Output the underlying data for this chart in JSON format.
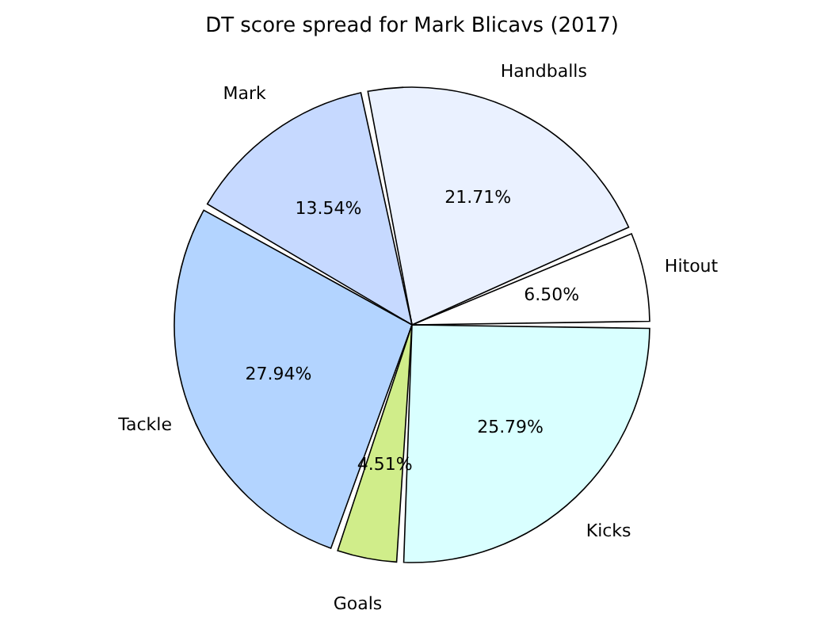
{
  "chart_data": {
    "type": "pie",
    "title": "DT score spread for Mark Blicavs (2017)",
    "categories": [
      "Hitout",
      "Handballs",
      "Mark",
      "Tackle",
      "Goals",
      "Kicks"
    ],
    "values": [
      6.5,
      21.71,
      13.54,
      27.94,
      4.51,
      25.79
    ],
    "value_labels": [
      "6.50%",
      "21.71%",
      "13.54%",
      "27.94%",
      "4.51%",
      "25.79%"
    ],
    "colors": [
      "#ffffff",
      "#eaf1ff",
      "#c6d9ff",
      "#b3d4ff",
      "#d0ed8a",
      "#d9ffff"
    ],
    "legend": false
  }
}
